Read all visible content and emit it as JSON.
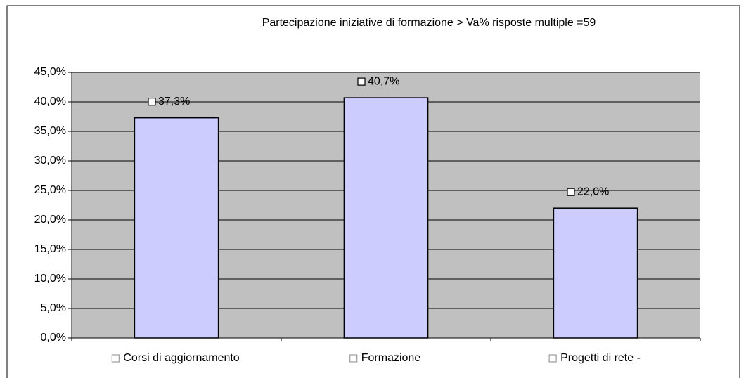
{
  "chart_data": {
    "type": "bar",
    "title": "Partecipazione iniziative di formazione > Va%  risposte multiple =59",
    "categories": [
      "Corsi di aggiornamento",
      "Formazione",
      "Progetti di rete -"
    ],
    "values": [
      37.3,
      40.7,
      22.0
    ],
    "value_labels": [
      "37,3%",
      "40,7%",
      "22,0%"
    ],
    "color": "#ccccff",
    "ylim": [
      0,
      45
    ],
    "yticks": [
      {
        "value": 0,
        "label": "0,0%"
      },
      {
        "value": 5,
        "label": "5,0%"
      },
      {
        "value": 10,
        "label": "10,0%"
      },
      {
        "value": 15,
        "label": "15,0%"
      },
      {
        "value": 20,
        "label": "20,0%"
      },
      {
        "value": 25,
        "label": "25,0%"
      },
      {
        "value": 30,
        "label": "30,0%"
      },
      {
        "value": 35,
        "label": "35,0%"
      },
      {
        "value": 40,
        "label": "40,0%"
      },
      {
        "value": 45,
        "label": "45,0%"
      }
    ],
    "grid": true
  }
}
